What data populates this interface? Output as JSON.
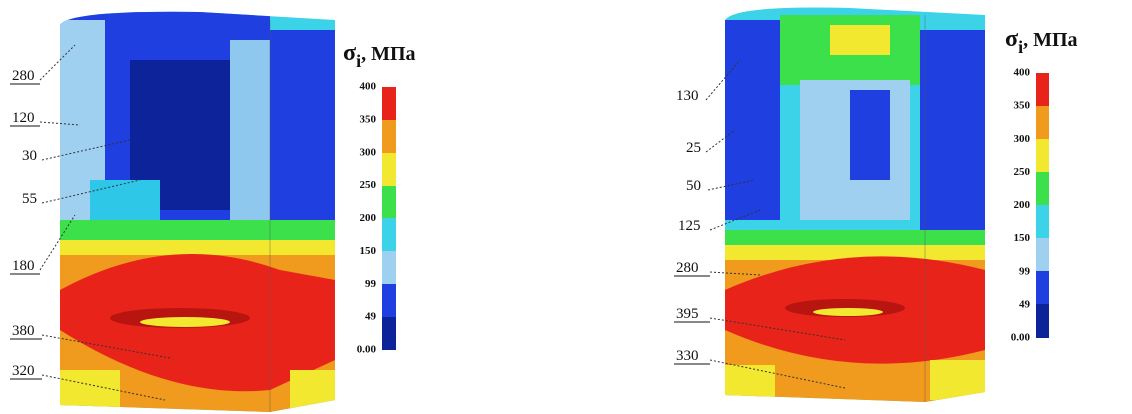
{
  "panels": [
    {
      "labels": [
        "280",
        "120",
        "30",
        "55",
        "180",
        "380",
        "320"
      ],
      "legend": {
        "symbol": "σ",
        "subscript": "i",
        "unit": ", МПа",
        "ticks": [
          "400",
          "350",
          "300",
          "250",
          "200",
          "150",
          "99",
          "49",
          "0.00"
        ]
      }
    },
    {
      "labels": [
        "130",
        "25",
        "50",
        "125",
        "280",
        "395",
        "330"
      ],
      "legend": {
        "symbol": "σ",
        "subscript": "i",
        "unit": ", МПа",
        "ticks": [
          "400",
          "350",
          "300",
          "250",
          "200",
          "150",
          "99",
          "49",
          "0.00"
        ]
      }
    }
  ]
}
